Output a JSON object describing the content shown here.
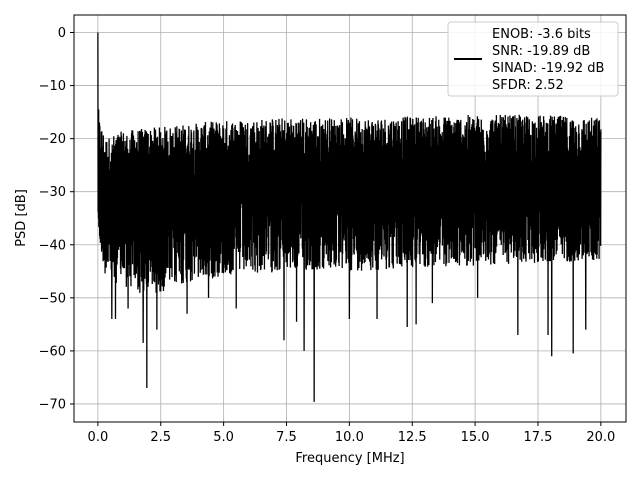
{
  "chart_data": {
    "type": "line",
    "xlabel": "Frequency [MHz]",
    "ylabel": "PSD [dB]",
    "xlim": [
      -0.95,
      21.0
    ],
    "ylim": [
      -73.4,
      3.3
    ],
    "xticks": [
      0.0,
      2.5,
      5.0,
      7.5,
      10.0,
      12.5,
      15.0,
      17.5,
      20.0
    ],
    "xtick_labels": [
      "0.0",
      "2.5",
      "5.0",
      "7.5",
      "10.0",
      "12.5",
      "15.0",
      "17.5",
      "20.0"
    ],
    "yticks": [
      0,
      -10,
      -20,
      -30,
      -40,
      -50,
      -60,
      -70
    ],
    "ytick_labels": [
      "0",
      "−10",
      "−20",
      "−30",
      "−40",
      "−50",
      "−60",
      "−70"
    ],
    "grid": true,
    "legend": {
      "placement": "top-right",
      "lines": [
        "ENOB: -3.6 bits",
        "SNR: -19.89 dB",
        "SINAD: -19.92 dB",
        "SFDR: 2.52"
      ]
    },
    "series": [
      {
        "color": "#000000",
        "peak": [
          0.0,
          0.0
        ],
        "envelope": {
          "x": [
            0.0,
            0.05,
            0.3,
            1.0,
            2.0,
            3.0,
            5.0,
            7.5,
            10.0,
            12.5,
            15.0,
            17.5,
            20.0
          ],
          "upper": [
            -12.0,
            -16.0,
            -20.0,
            -18.5,
            -18.0,
            -17.5,
            -16.5,
            -16.0,
            -16.0,
            -15.8,
            -15.5,
            -15.5,
            -16.0
          ],
          "lower": [
            -34.0,
            -40.0,
            -46.0,
            -48.0,
            -50.0,
            -48.0,
            -46.0,
            -45.0,
            -45.0,
            -44.5,
            -44.0,
            -43.5,
            -43.0
          ],
          "baseline": [
            -30.0,
            -28.0,
            -29.0,
            -29.0,
            -29.0,
            -28.5,
            -28.0,
            -28.0,
            -28.0,
            -28.0,
            -28.0,
            -28.0,
            -28.0
          ]
        },
        "dips": [
          [
            0.55,
            -54.0
          ],
          [
            0.7,
            -54.0
          ],
          [
            1.2,
            -52.0
          ],
          [
            1.8,
            -58.5
          ],
          [
            1.95,
            -67.0
          ],
          [
            2.35,
            -56.0
          ],
          [
            3.55,
            -53.0
          ],
          [
            4.4,
            -50.0
          ],
          [
            5.5,
            -52.0
          ],
          [
            7.4,
            -58.0
          ],
          [
            7.9,
            -54.5
          ],
          [
            8.2,
            -60.0
          ],
          [
            8.6,
            -69.6
          ],
          [
            10.0,
            -54.0
          ],
          [
            11.1,
            -54.0
          ],
          [
            12.3,
            -55.5
          ],
          [
            12.65,
            -55.0
          ],
          [
            13.3,
            -51.0
          ],
          [
            15.1,
            -50.0
          ],
          [
            16.7,
            -57.0
          ],
          [
            17.9,
            -57.0
          ],
          [
            18.05,
            -61.0
          ],
          [
            18.9,
            -60.5
          ],
          [
            19.4,
            -56.0
          ]
        ]
      }
    ]
  }
}
